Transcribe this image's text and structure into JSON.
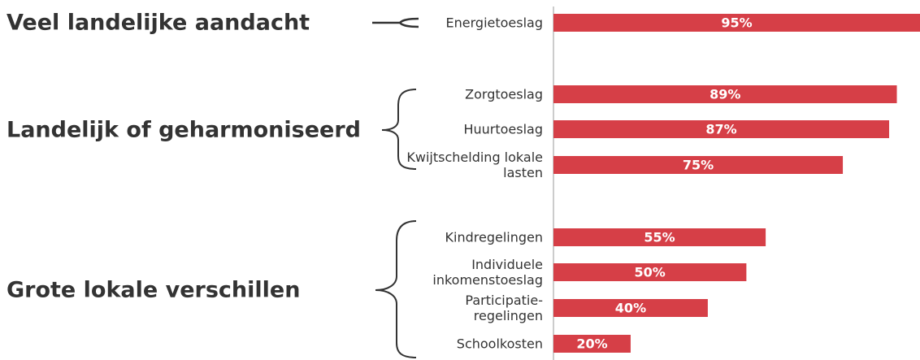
{
  "chart_data": {
    "type": "bar",
    "orientation": "horizontal",
    "categories": [
      "Energietoeslag",
      "Zorgtoeslag",
      "Huurtoeslag",
      "Kwijtschelding lokale lasten",
      "Kindregelingen",
      "Individuele inkomenstoeslag",
      "Participatie-regelingen",
      "Schoolkosten"
    ],
    "values": [
      95,
      89,
      87,
      75,
      55,
      50,
      40,
      20
    ],
    "value_labels": [
      "95%",
      "89%",
      "87%",
      "75%",
      "55%",
      "50%",
      "40%",
      "20%"
    ],
    "color": "#d63f47",
    "xlim": [
      0,
      95
    ],
    "groups": [
      "Veel landelijke aandacht",
      "Landelijk of geharmoniseerd",
      "Grote lokale verschillen"
    ]
  }
}
